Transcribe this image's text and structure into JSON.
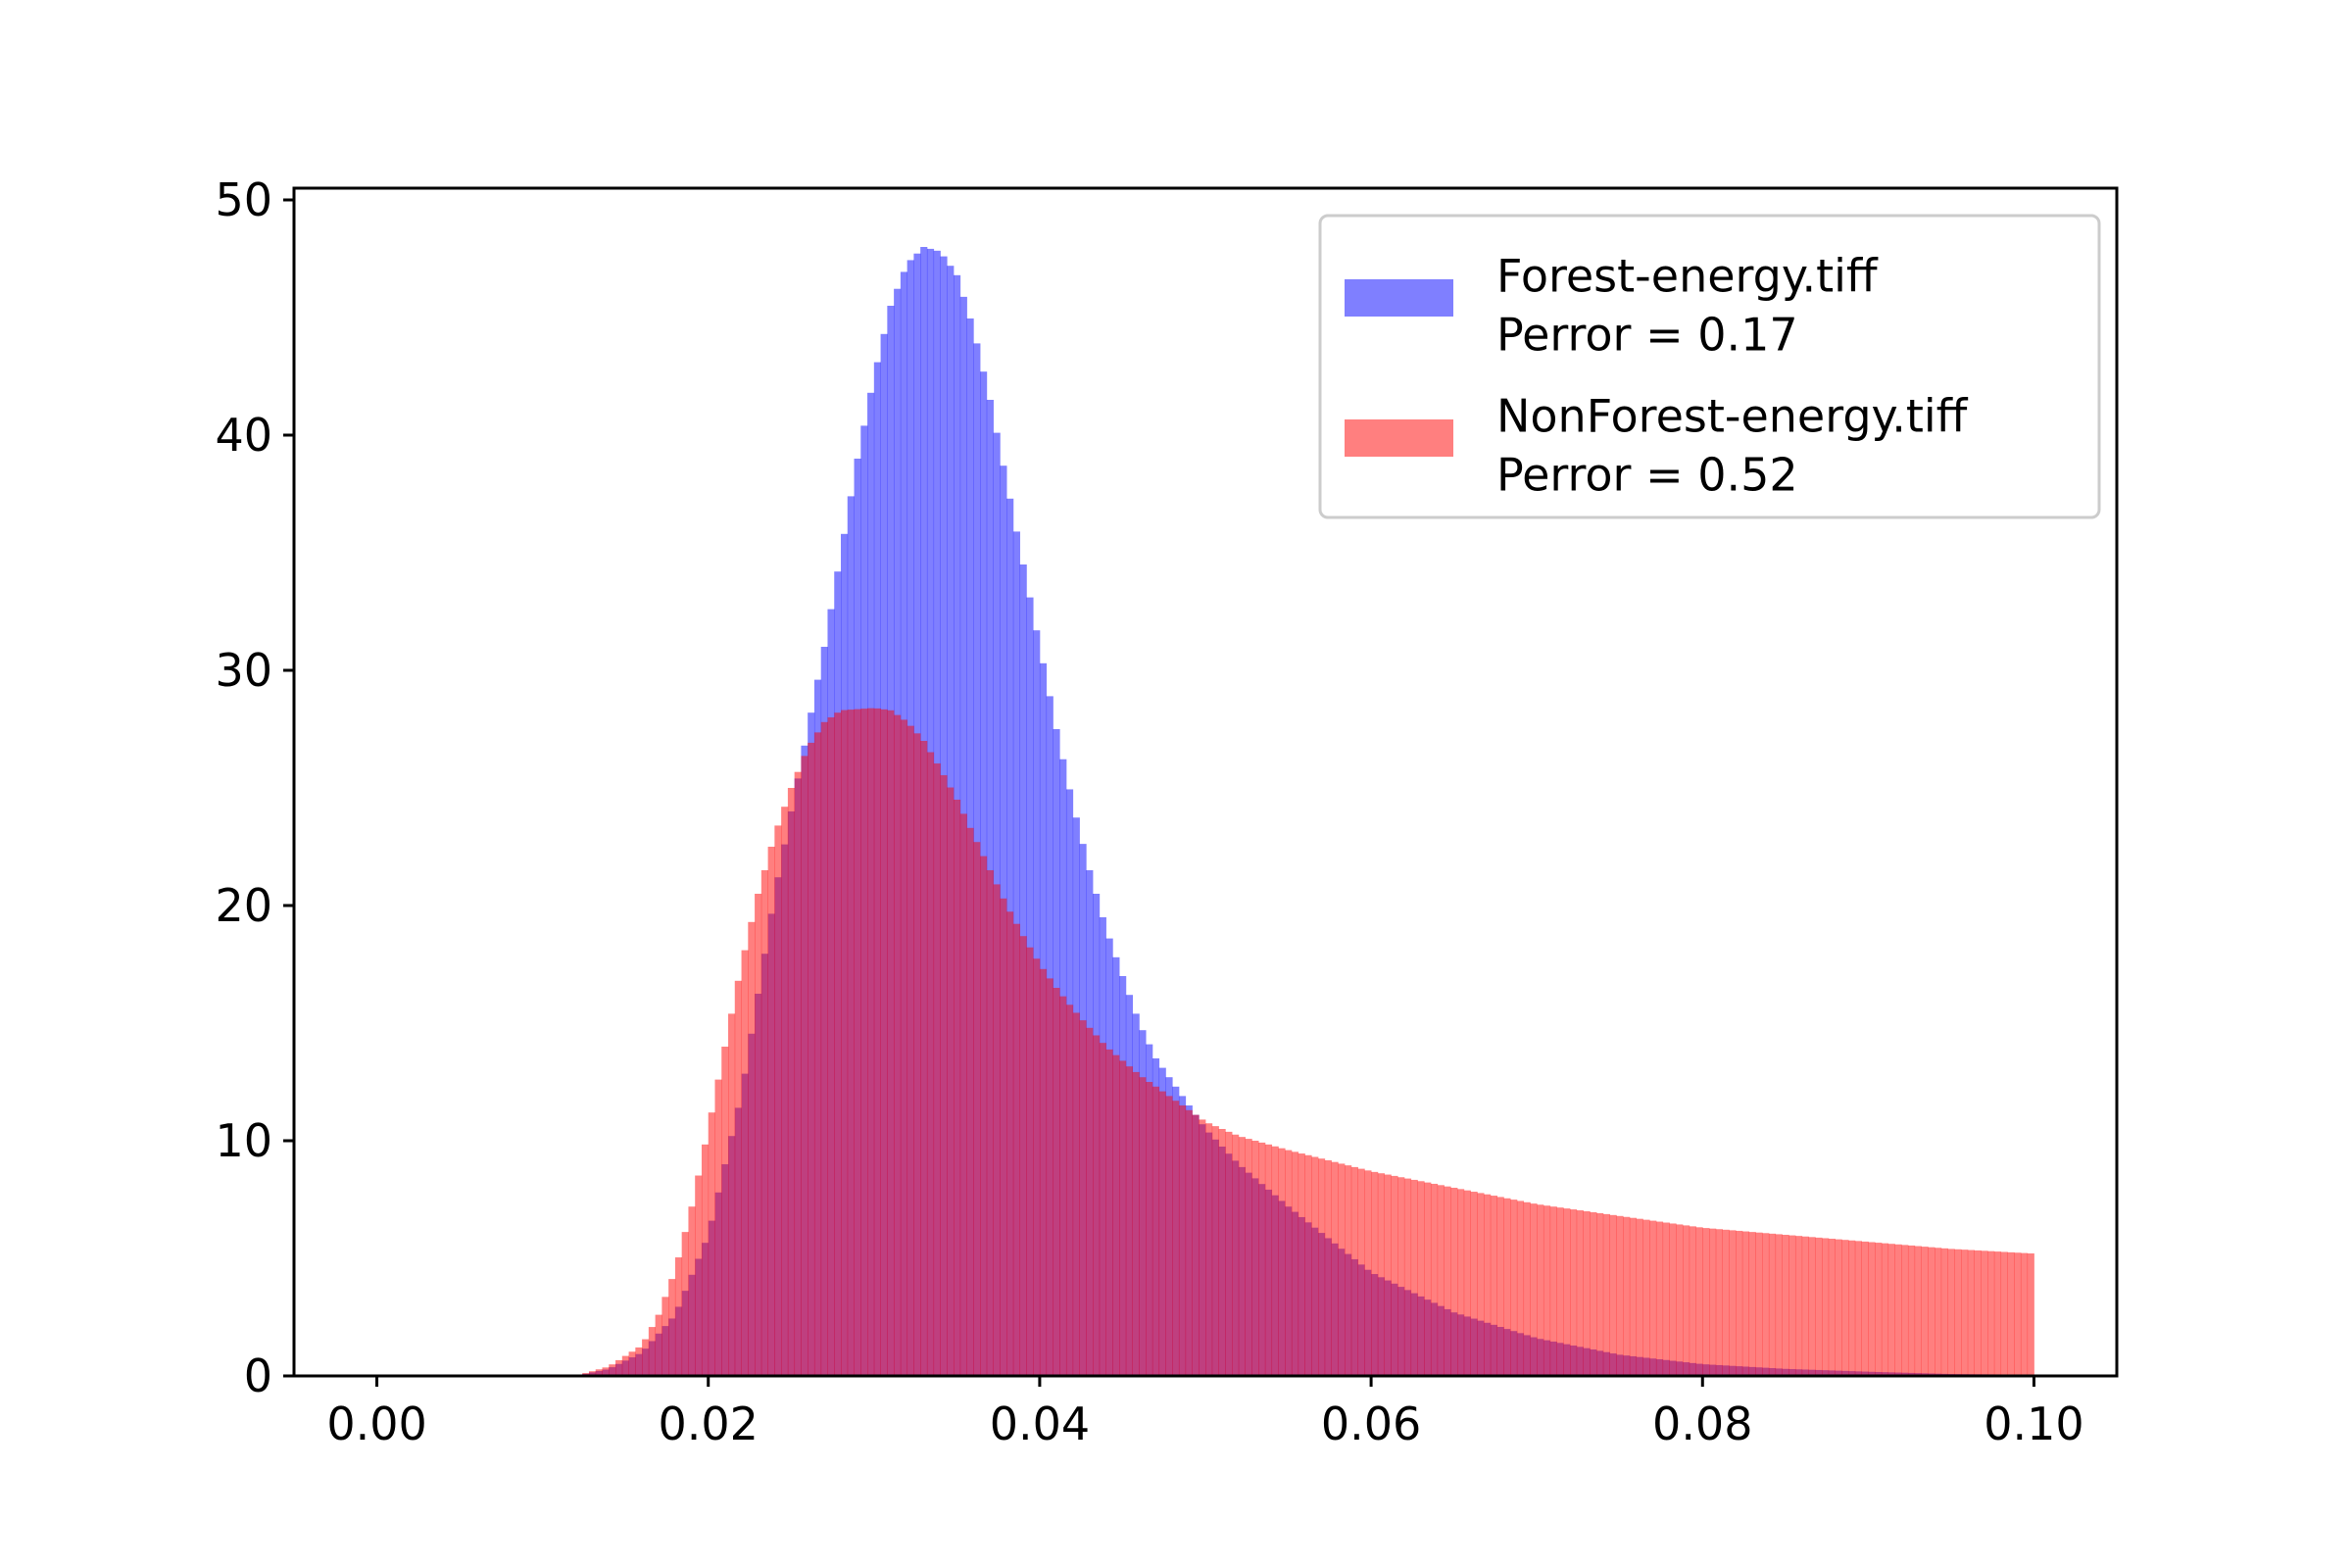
{
  "chart_data": {
    "type": "histogram",
    "title": "",
    "xlabel": "",
    "ylabel": "",
    "xlim": [
      -0.005,
      0.105
    ],
    "ylim": [
      0,
      50.5
    ],
    "bin_range": [
      0.0,
      0.1
    ],
    "x_ticks": [
      0.0,
      0.02,
      0.04,
      0.06,
      0.08,
      0.1
    ],
    "x_tick_labels": [
      "0.00",
      "0.02",
      "0.04",
      "0.06",
      "0.08",
      "0.10"
    ],
    "y_ticks": [
      0,
      10,
      20,
      30,
      40,
      50
    ],
    "y_tick_labels": [
      "0",
      "10",
      "20",
      "30",
      "40",
      "50"
    ],
    "grid": false,
    "legend_position": "upper right",
    "series": [
      {
        "name": "Forest-energy.tiff",
        "legend_lines": [
          "Forest-energy.tiff",
          "Perror = 0.17"
        ],
        "color": "#0000ff",
        "alpha": 0.5,
        "x": [
          0.012,
          0.014,
          0.016,
          0.018,
          0.02,
          0.022,
          0.024,
          0.026,
          0.027,
          0.028,
          0.029,
          0.03,
          0.031,
          0.032,
          0.033,
          0.034,
          0.035,
          0.036,
          0.037,
          0.038,
          0.039,
          0.04,
          0.041,
          0.042,
          0.043,
          0.044,
          0.045,
          0.046,
          0.047,
          0.048,
          0.049,
          0.05,
          0.052,
          0.055,
          0.06,
          0.065,
          0.07,
          0.075,
          0.08,
          0.085,
          0.09,
          0.095,
          0.1
        ],
        "y": [
          0.0,
          0.3,
          1.0,
          2.6,
          6.0,
          12.0,
          20.5,
          27.5,
          31.0,
          35.0,
          39.0,
          42.5,
          45.5,
          47.3,
          48.0,
          47.8,
          46.8,
          44.5,
          41.5,
          38.0,
          34.5,
          31.0,
          27.5,
          24.3,
          21.5,
          19.0,
          17.0,
          15.0,
          13.5,
          12.5,
          11.5,
          10.5,
          9.0,
          7.2,
          4.4,
          2.7,
          1.6,
          0.9,
          0.5,
          0.3,
          0.18,
          0.08,
          0.05
        ]
      },
      {
        "name": "NonForest-energy.tiff",
        "legend_lines": [
          "NonForest-energy.tiff",
          "Perror = 0.52"
        ],
        "color": "#ff0000",
        "alpha": 0.5,
        "x": [
          0.012,
          0.014,
          0.016,
          0.017,
          0.018,
          0.019,
          0.02,
          0.021,
          0.022,
          0.023,
          0.024,
          0.025,
          0.026,
          0.027,
          0.028,
          0.03,
          0.031,
          0.032,
          0.033,
          0.034,
          0.035,
          0.036,
          0.037,
          0.038,
          0.039,
          0.04,
          0.041,
          0.042,
          0.043,
          0.044,
          0.045,
          0.046,
          0.047,
          0.048,
          0.049,
          0.05,
          0.052,
          0.055,
          0.06,
          0.065,
          0.07,
          0.075,
          0.08,
          0.085,
          0.09,
          0.095,
          0.1
        ],
        "y": [
          0.0,
          0.4,
          1.3,
          2.6,
          4.5,
          7.2,
          10.5,
          14.0,
          17.5,
          20.5,
          23.0,
          25.0,
          26.7,
          27.8,
          28.3,
          28.4,
          28.3,
          27.8,
          27.0,
          25.8,
          24.5,
          23.0,
          21.5,
          20.0,
          18.7,
          17.5,
          16.5,
          15.6,
          14.8,
          14.0,
          13.4,
          12.8,
          12.3,
          11.8,
          11.3,
          10.8,
          10.2,
          9.6,
          8.7,
          8.0,
          7.3,
          6.8,
          6.3,
          6.0,
          5.7,
          5.4,
          5.2
        ]
      }
    ]
  }
}
